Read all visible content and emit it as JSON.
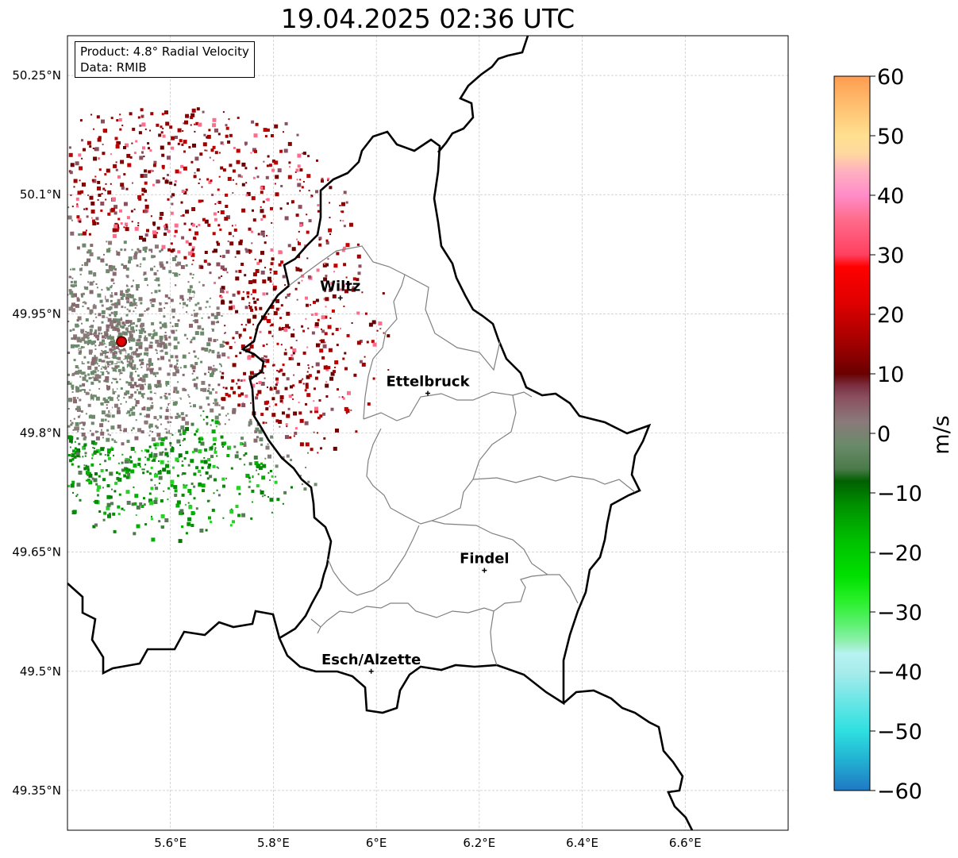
{
  "title": "19.04.2025 02:36 UTC",
  "info": {
    "product": "Product: 4.8° Radial Velocity",
    "data": "Data: RMIB"
  },
  "lat_ticks": [
    {
      "v": 50.25,
      "label": "50.25°N"
    },
    {
      "v": 50.1,
      "label": "50.1°N"
    },
    {
      "v": 49.95,
      "label": "49.95°N"
    },
    {
      "v": 49.8,
      "label": "49.8°N"
    },
    {
      "v": 49.65,
      "label": "49.65°N"
    },
    {
      "v": 49.5,
      "label": "49.5°N"
    },
    {
      "v": 49.35,
      "label": "49.35°N"
    }
  ],
  "lon_ticks": [
    {
      "v": 5.6,
      "label": "5.6°E"
    },
    {
      "v": 5.8,
      "label": "5.8°E"
    },
    {
      "v": 6.0,
      "label": "6°E"
    },
    {
      "v": 6.2,
      "label": "6.2°E"
    },
    {
      "v": 6.4,
      "label": "6.4°E"
    },
    {
      "v": 6.6,
      "label": "6.6°E"
    }
  ],
  "extent": {
    "lon": [
      5.4,
      6.8
    ],
    "lat": [
      49.3,
      50.3
    ]
  },
  "cities": [
    {
      "name": "Wiltz",
      "lon": 5.93,
      "lat": 49.97
    },
    {
      "name": "Ettelbruck",
      "lon": 6.1,
      "lat": 49.85
    },
    {
      "name": "Findel",
      "lon": 6.21,
      "lat": 49.627
    },
    {
      "name": "Esch/Alzette",
      "lon": 5.99,
      "lat": 49.5
    }
  ],
  "radar_site": {
    "lon": 5.505,
    "lat": 49.915
  },
  "colorbar": {
    "label": "m/s",
    "min": -60,
    "max": 60,
    "ticks": [
      {
        "v": 60,
        "label": "60"
      },
      {
        "v": 50,
        "label": "50"
      },
      {
        "v": 40,
        "label": "40"
      },
      {
        "v": 30,
        "label": "30"
      },
      {
        "v": 20,
        "label": "20"
      },
      {
        "v": 10,
        "label": "10"
      },
      {
        "v": 0,
        "label": "0"
      },
      {
        "v": -10,
        "label": "−10"
      },
      {
        "v": -20,
        "label": "−20"
      },
      {
        "v": -30,
        "label": "−30"
      },
      {
        "v": -40,
        "label": "−40"
      },
      {
        "v": -50,
        "label": "−50"
      },
      {
        "v": -60,
        "label": "−60"
      }
    ],
    "stops": [
      {
        "v": -60,
        "c": "#1f78c4"
      },
      {
        "v": -55,
        "c": "#22b0d2"
      },
      {
        "v": -50,
        "c": "#2ee0e0"
      },
      {
        "v": -45,
        "c": "#6ae6e6"
      },
      {
        "v": -40,
        "c": "#a8ecec"
      },
      {
        "v": -37,
        "c": "#b8f2f2"
      },
      {
        "v": -35,
        "c": "#90f0b0"
      },
      {
        "v": -32,
        "c": "#5cf070"
      },
      {
        "v": -28,
        "c": "#28f028"
      },
      {
        "v": -24,
        "c": "#00e000"
      },
      {
        "v": -18,
        "c": "#00c000"
      },
      {
        "v": -12,
        "c": "#009000"
      },
      {
        "v": -8,
        "c": "#006000"
      },
      {
        "v": -6,
        "c": "#4a7a4a"
      },
      {
        "v": -2,
        "c": "#6a8a6a"
      },
      {
        "v": 2,
        "c": "#8a7a7a"
      },
      {
        "v": 6,
        "c": "#8a5060"
      },
      {
        "v": 8,
        "c": "#7a3040"
      },
      {
        "v": 10,
        "c": "#6a0000"
      },
      {
        "v": 15,
        "c": "#a00000"
      },
      {
        "v": 22,
        "c": "#e00000"
      },
      {
        "v": 28,
        "c": "#ff0000"
      },
      {
        "v": 30,
        "c": "#ff4060"
      },
      {
        "v": 36,
        "c": "#ff6c8c"
      },
      {
        "v": 40,
        "c": "#ff8cc8"
      },
      {
        "v": 44,
        "c": "#ffb0c0"
      },
      {
        "v": 47,
        "c": "#ffd8a0"
      },
      {
        "v": 50,
        "c": "#ffe090"
      },
      {
        "v": 55,
        "c": "#ffc070"
      },
      {
        "v": 60,
        "c": "#ff9c50"
      }
    ]
  }
}
